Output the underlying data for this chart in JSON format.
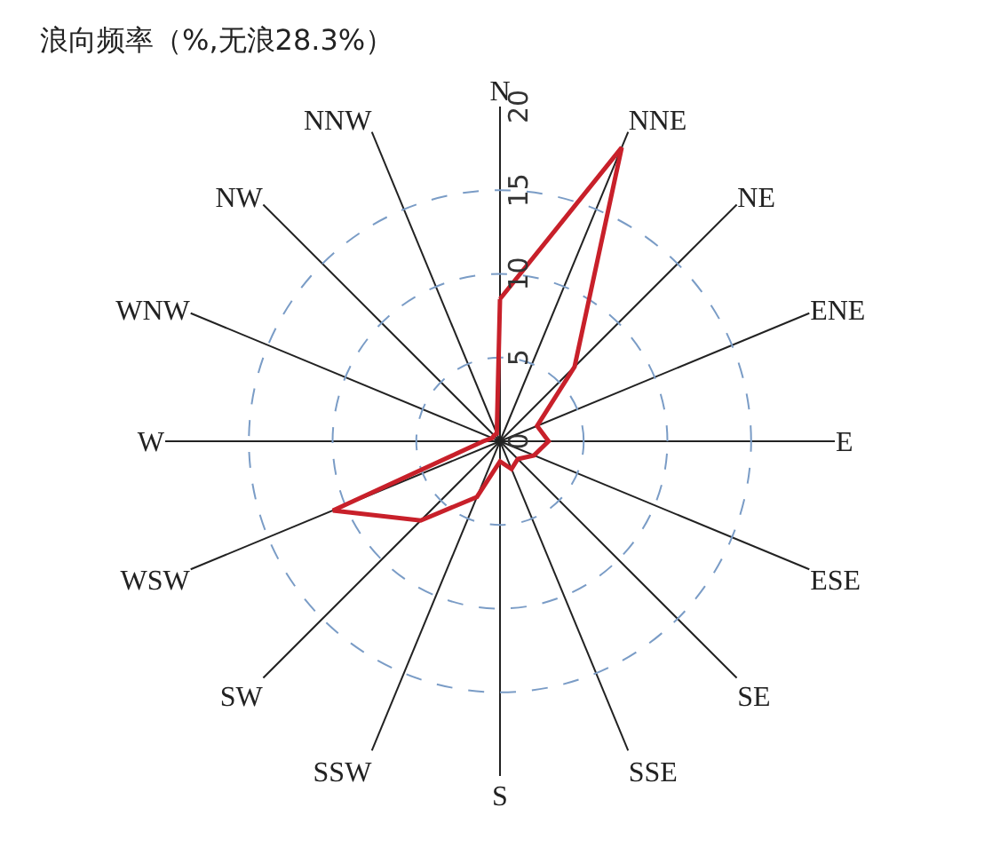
{
  "chart_data": {
    "type": "radar",
    "title": "浪向频率（%,无浪28.3%）",
    "categories": [
      "N",
      "NNE",
      "NE",
      "ENE",
      "E",
      "ESE",
      "SE",
      "SSE",
      "S",
      "SSW",
      "SW",
      "WSW",
      "W",
      "WNW",
      "NW",
      "NNW"
    ],
    "series": [
      {
        "color": "#c8202a",
        "values": [
          8.5,
          19,
          6.3,
          2.4,
          2.9,
          2.2,
          1.5,
          1.8,
          1.2,
          3.6,
          6.7,
          10.8,
          1,
          0.5,
          0.5,
          0.5
        ]
      }
    ],
    "ylim": [
      0,
      20
    ],
    "yticks": [
      0,
      5,
      10,
      15,
      20
    ],
    "grid": true,
    "marker": "none",
    "line_style": "solid"
  }
}
